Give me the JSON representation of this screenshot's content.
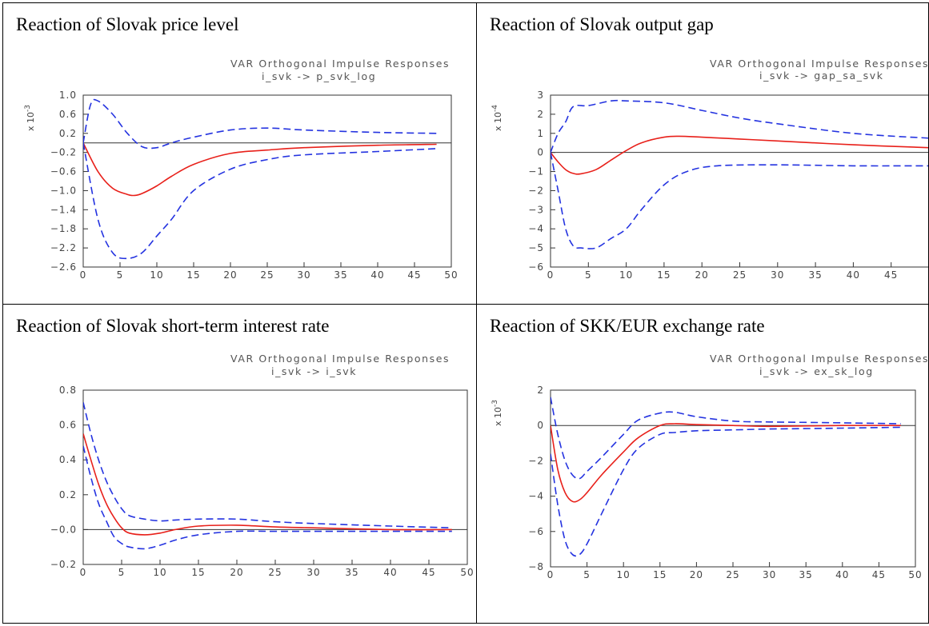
{
  "chart_data": [
    {
      "type": "line",
      "panel_title": "Reaction of Slovak price level",
      "title": "VAR Orthogonal Impulse Responses",
      "subtitle": "i_svk -> p_svk_log",
      "scale_label": "x 10^-3",
      "xlim": [
        0,
        50
      ],
      "ylim": [
        -2.6,
        1.0
      ],
      "xticks": [
        "0",
        "5",
        "10",
        "15",
        "20",
        "25",
        "30",
        "35",
        "40",
        "45",
        "50"
      ],
      "yticks": [
        "1.0",
        "0.6",
        "0.2",
        "-0.2",
        "-0.6",
        "-1.0",
        "-1.4",
        "-1.8",
        "-2.2",
        "-2.6"
      ],
      "zero_line": 0,
      "grid": false,
      "series": [
        {
          "role": "response",
          "style": "solid",
          "color": "#e8201a",
          "x": [
            0,
            2,
            4,
            6,
            7,
            8,
            10,
            12,
            15,
            20,
            25,
            30,
            40,
            48
          ],
          "y": [
            0,
            -0.6,
            -0.95,
            -1.08,
            -1.1,
            -1.06,
            -0.9,
            -0.7,
            -0.45,
            -0.22,
            -0.15,
            -0.1,
            -0.05,
            -0.03
          ]
        },
        {
          "role": "upper-band",
          "style": "dashed",
          "color": "#2433e0",
          "x": [
            0,
            1,
            2,
            4,
            6,
            8,
            10,
            12,
            15,
            20,
            25,
            30,
            40,
            48
          ],
          "y": [
            0,
            0.8,
            0.88,
            0.6,
            0.2,
            -0.08,
            -0.1,
            0.0,
            0.12,
            0.27,
            0.31,
            0.27,
            0.22,
            0.2
          ]
        },
        {
          "role": "lower-band",
          "style": "dashed",
          "color": "#2433e0",
          "x": [
            0,
            2,
            4,
            6,
            8,
            10,
            12,
            15,
            20,
            25,
            30,
            40,
            48
          ],
          "y": [
            0,
            -1.6,
            -2.3,
            -2.42,
            -2.3,
            -1.95,
            -1.6,
            -1.0,
            -0.55,
            -0.35,
            -0.25,
            -0.18,
            -0.12
          ]
        }
      ]
    },
    {
      "type": "line",
      "panel_title": "Reaction of Slovak output gap",
      "title": "VAR Orthogonal Impulse Responses",
      "subtitle": "i_svk -> gap_sa_svk",
      "scale_label": "x 10^-4",
      "xlim": [
        0,
        50
      ],
      "ylim": [
        -6,
        3
      ],
      "xticks": [
        "0",
        "5",
        "10",
        "15",
        "20",
        "25",
        "30",
        "35",
        "40",
        "45"
      ],
      "yticks": [
        "3",
        "2",
        "1",
        "0",
        "-1",
        "-2",
        "-3",
        "-4",
        "-5",
        "-6"
      ],
      "zero_line": 0,
      "grid": false,
      "series": [
        {
          "role": "response",
          "style": "solid",
          "color": "#e8201a",
          "x": [
            0,
            1,
            2,
            3,
            4,
            6,
            8,
            10,
            12,
            15,
            17,
            20,
            25,
            30,
            40,
            50
          ],
          "y": [
            0,
            -0.5,
            -0.9,
            -1.1,
            -1.12,
            -0.9,
            -0.4,
            0.1,
            0.5,
            0.8,
            0.85,
            0.8,
            0.7,
            0.6,
            0.4,
            0.25
          ]
        },
        {
          "role": "upper-band",
          "style": "dashed",
          "color": "#2433e0",
          "x": [
            0,
            1,
            2,
            3,
            5,
            8,
            10,
            15,
            20,
            25,
            30,
            40,
            50
          ],
          "y": [
            0,
            1.0,
            1.6,
            2.4,
            2.45,
            2.7,
            2.7,
            2.6,
            2.2,
            1.8,
            1.5,
            1.0,
            0.75
          ]
        },
        {
          "role": "lower-band",
          "style": "dashed",
          "color": "#2433e0",
          "x": [
            0,
            1,
            2,
            3,
            4,
            6,
            8,
            10,
            12,
            15,
            18,
            22,
            30,
            40,
            50
          ],
          "y": [
            0,
            -2.0,
            -4.0,
            -4.9,
            -5.0,
            -5.0,
            -4.5,
            -4.0,
            -3.0,
            -1.7,
            -1.0,
            -0.7,
            -0.65,
            -0.7,
            -0.7
          ]
        }
      ]
    },
    {
      "type": "line",
      "panel_title": "Reaction of Slovak short-term interest rate",
      "title": "VAR Orthogonal Impulse Responses",
      "subtitle": "i_svk -> i_svk",
      "scale_label": "",
      "xlim": [
        0,
        50
      ],
      "ylim": [
        -0.2,
        0.8
      ],
      "xticks": [
        "0",
        "5",
        "10",
        "15",
        "20",
        "25",
        "30",
        "35",
        "40",
        "45",
        "50"
      ],
      "yticks": [
        "0.8",
        "0.6",
        "0.4",
        "0.2",
        "-0.0",
        "-0.2"
      ],
      "zero_line": 0,
      "grid": false,
      "series": [
        {
          "role": "response",
          "style": "solid",
          "color": "#e8201a",
          "x": [
            0,
            1,
            2,
            3,
            4,
            5,
            6,
            8,
            10,
            12,
            15,
            20,
            25,
            30,
            40,
            48
          ],
          "y": [
            0.55,
            0.4,
            0.26,
            0.15,
            0.07,
            0.01,
            -0.02,
            -0.03,
            -0.02,
            0.0,
            0.02,
            0.025,
            0.015,
            0.01,
            0.0,
            0.0
          ]
        },
        {
          "role": "upper-band",
          "style": "dashed",
          "color": "#2433e0",
          "x": [
            0,
            1,
            2,
            3,
            4,
            5,
            6,
            8,
            10,
            12,
            15,
            20,
            25,
            30,
            40,
            48
          ],
          "y": [
            0.73,
            0.55,
            0.4,
            0.28,
            0.19,
            0.12,
            0.08,
            0.06,
            0.05,
            0.055,
            0.06,
            0.06,
            0.045,
            0.035,
            0.02,
            0.01
          ]
        },
        {
          "role": "lower-band",
          "style": "dashed",
          "color": "#2433e0",
          "x": [
            0,
            1,
            2,
            3,
            4,
            5,
            6,
            8,
            10,
            12,
            15,
            20,
            25,
            30,
            40,
            48
          ],
          "y": [
            0.48,
            0.3,
            0.15,
            0.05,
            -0.04,
            -0.08,
            -0.1,
            -0.11,
            -0.09,
            -0.06,
            -0.03,
            -0.01,
            -0.01,
            -0.01,
            -0.01,
            -0.01
          ]
        }
      ]
    },
    {
      "type": "line",
      "panel_title": "Reaction of SKK/EUR exchange rate",
      "title": "VAR Orthogonal Impulse Responses",
      "subtitle": "i_svk -> ex_sk_log",
      "scale_label": "x 10^-3",
      "xlim": [
        0,
        50
      ],
      "ylim": [
        -8,
        2
      ],
      "xticks": [
        "0",
        "5",
        "10",
        "15",
        "20",
        "25",
        "30",
        "35",
        "40",
        "45",
        "50"
      ],
      "yticks": [
        "2",
        "0",
        "-2",
        "-4",
        "-6",
        "-8"
      ],
      "zero_line": 0,
      "grid": false,
      "series": [
        {
          "role": "response",
          "style": "solid",
          "color": "#e8201a",
          "x": [
            0,
            1,
            2,
            3,
            4,
            5,
            7,
            10,
            12,
            15,
            17,
            20,
            25,
            30,
            40,
            48
          ],
          "y": [
            0,
            -2.5,
            -3.8,
            -4.3,
            -4.2,
            -3.8,
            -2.8,
            -1.5,
            -0.7,
            0.0,
            0.1,
            0.05,
            0.0,
            -0.05,
            0.0,
            0.0
          ]
        },
        {
          "role": "upper-band",
          "style": "dashed",
          "color": "#2433e0",
          "x": [
            0,
            1,
            2,
            3,
            4,
            5,
            7,
            10,
            12,
            15,
            17,
            20,
            25,
            30,
            40,
            48
          ],
          "y": [
            1.6,
            -0.5,
            -2.0,
            -2.8,
            -3.0,
            -2.6,
            -1.8,
            -0.5,
            0.3,
            0.7,
            0.75,
            0.5,
            0.25,
            0.2,
            0.15,
            0.1
          ]
        },
        {
          "role": "lower-band",
          "style": "dashed",
          "color": "#2433e0",
          "x": [
            0,
            1,
            2,
            3,
            4,
            5,
            7,
            10,
            12,
            15,
            17,
            20,
            25,
            30,
            40,
            48
          ],
          "y": [
            -1.6,
            -4.5,
            -6.5,
            -7.3,
            -7.3,
            -6.7,
            -5.0,
            -2.5,
            -1.3,
            -0.5,
            -0.4,
            -0.3,
            -0.25,
            -0.2,
            -0.15,
            -0.1
          ]
        }
      ]
    }
  ]
}
